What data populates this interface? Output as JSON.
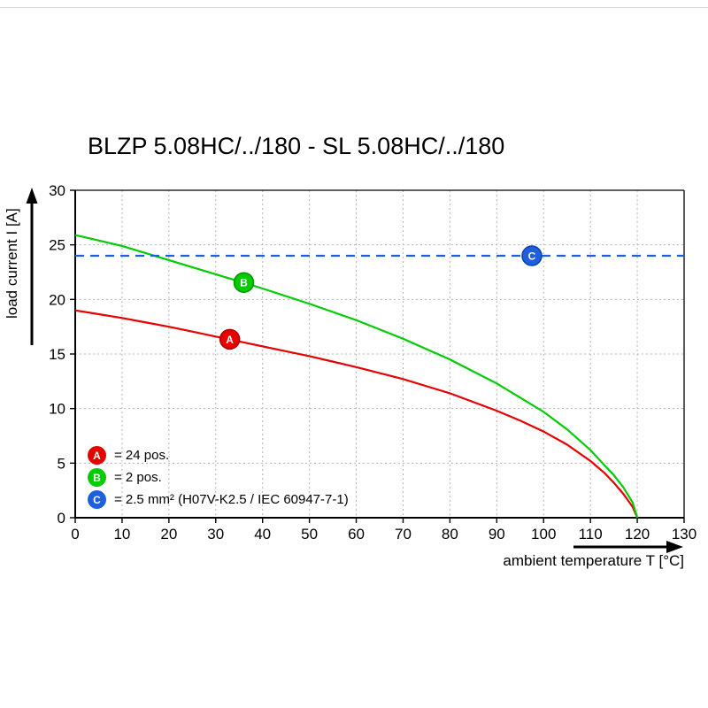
{
  "chart_data": {
    "type": "line",
    "title": "BLZP 5.08HC/../180 - SL 5.08HC/../180",
    "xlabel": "ambient temperature T [°C]",
    "ylabel": "load current I [A]",
    "xlim": [
      0,
      130
    ],
    "ylim": [
      0,
      30
    ],
    "x_ticks": [
      0,
      10,
      20,
      30,
      40,
      50,
      60,
      70,
      80,
      90,
      100,
      110,
      120,
      130
    ],
    "y_ticks": [
      0,
      5,
      10,
      15,
      20,
      25,
      30
    ],
    "grid": "dashed",
    "legend_position": "bottom-left",
    "series": [
      {
        "name": "24 pos.",
        "letter": "A",
        "legend": "= 24 pos.",
        "color": "#e60000",
        "dark": "#a80000",
        "line": "solid",
        "marker_at": [
          33,
          16.35
        ],
        "points": [
          [
            0,
            19
          ],
          [
            5,
            18.65
          ],
          [
            10,
            18.3
          ],
          [
            15,
            17.9
          ],
          [
            20,
            17.5
          ],
          [
            25,
            17.05
          ],
          [
            30,
            16.6
          ],
          [
            35,
            16.15
          ],
          [
            40,
            15.7
          ],
          [
            45,
            15.25
          ],
          [
            50,
            14.8
          ],
          [
            55,
            14.3
          ],
          [
            60,
            13.8
          ],
          [
            65,
            13.25
          ],
          [
            70,
            12.7
          ],
          [
            75,
            12.05
          ],
          [
            80,
            11.4
          ],
          [
            85,
            10.6
          ],
          [
            90,
            9.8
          ],
          [
            95,
            8.9
          ],
          [
            100,
            7.9
          ],
          [
            105,
            6.7
          ],
          [
            110,
            5.2
          ],
          [
            113,
            4.1
          ],
          [
            115,
            3.2
          ],
          [
            117,
            2.2
          ],
          [
            119,
            1.0
          ],
          [
            120,
            0
          ]
        ]
      },
      {
        "name": "2 pos.",
        "letter": "B",
        "legend": "= 2 pos.",
        "color": "#00cc00",
        "dark": "#009400",
        "line": "solid",
        "marker_at": [
          36,
          21.55
        ],
        "points": [
          [
            0,
            25.9
          ],
          [
            5,
            25.4
          ],
          [
            10,
            24.9
          ],
          [
            15,
            24.25
          ],
          [
            20,
            23.6
          ],
          [
            25,
            22.95
          ],
          [
            30,
            22.3
          ],
          [
            35,
            21.65
          ],
          [
            40,
            21.0
          ],
          [
            45,
            20.3
          ],
          [
            50,
            19.6
          ],
          [
            55,
            18.85
          ],
          [
            60,
            18.1
          ],
          [
            65,
            17.25
          ],
          [
            70,
            16.4
          ],
          [
            75,
            15.45
          ],
          [
            80,
            14.5
          ],
          [
            85,
            13.4
          ],
          [
            90,
            12.3
          ],
          [
            95,
            11.0
          ],
          [
            100,
            9.7
          ],
          [
            105,
            8.1
          ],
          [
            110,
            6.2
          ],
          [
            113,
            4.8
          ],
          [
            115,
            3.9
          ],
          [
            117,
            2.8
          ],
          [
            119,
            1.4
          ],
          [
            120,
            0
          ]
        ]
      },
      {
        "name": "2.5 mm² limit",
        "letter": "C",
        "legend": "= 2.5 mm² (H07V-K2.5 / IEC 60947-7-1)",
        "color": "#1e5fe0",
        "dark": "#0d3fae",
        "line": "dashed",
        "marker_at": [
          97.5,
          24
        ],
        "points": [
          [
            0,
            24
          ],
          [
            130,
            24
          ]
        ]
      }
    ]
  }
}
